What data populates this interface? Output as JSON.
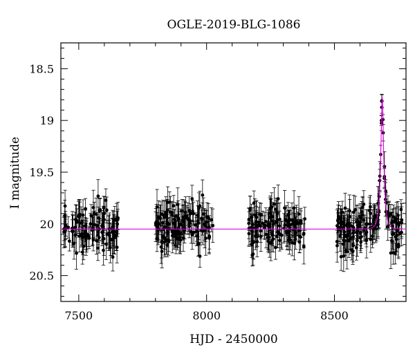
{
  "chart_data": {
    "type": "scatter",
    "title": "OGLE-2019-BLG-1086",
    "xlabel": "HJD - 2450000",
    "ylabel": "I magnitude",
    "xlim": [
      7430,
      8780
    ],
    "ylim": [
      20.75,
      18.25
    ],
    "y_inverted": true,
    "grid": false,
    "x_ticks": [
      7500,
      8000,
      8500
    ],
    "x_tick_labels": [
      "7500",
      "8000",
      "8500"
    ],
    "y_ticks": [
      18.5,
      19,
      19.5,
      20,
      20.5
    ],
    "y_tick_labels": [
      "18.5",
      "19",
      "19.5",
      "20",
      "20.5"
    ],
    "colors": {
      "data": "#000000",
      "model": "#e000e0"
    },
    "model": {
      "baseline_mag": 20.05,
      "peak_time": 8687,
      "peak_mag": 18.77,
      "timescale_days": 12
    },
    "observing_seasons": [
      {
        "start": 7440,
        "end": 7660,
        "n_points": 110
      },
      {
        "start": 7800,
        "end": 8025,
        "n_points": 130
      },
      {
        "start": 8165,
        "end": 8390,
        "n_points": 130
      },
      {
        "start": 8510,
        "end": 8770,
        "n_points": 160
      }
    ],
    "scatter": {
      "mean_mag": 20.05,
      "spread_mag": 0.17,
      "errorbar_mag": 0.17
    }
  }
}
